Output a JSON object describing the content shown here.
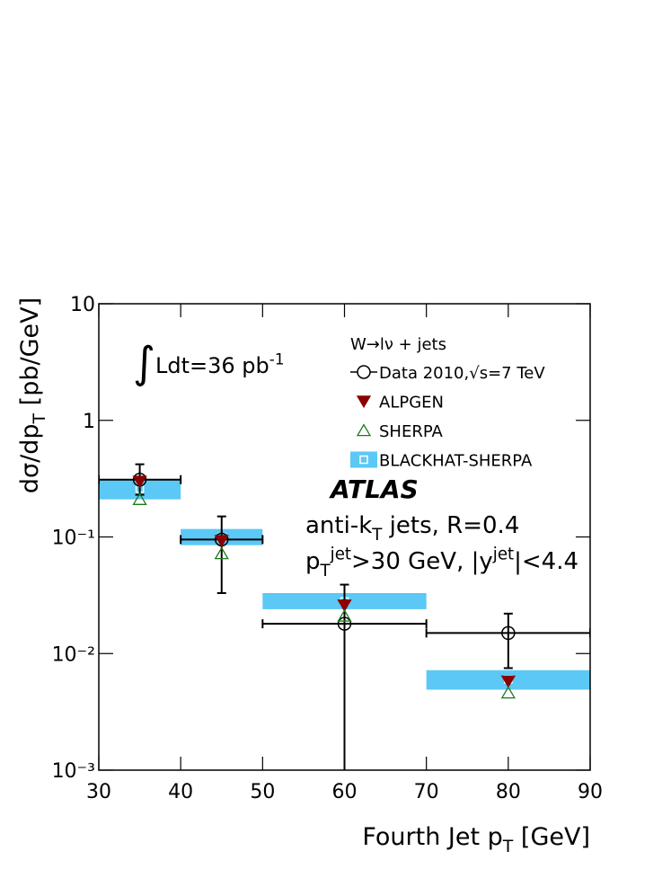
{
  "chart_data": {
    "type": "log-errorbar",
    "xlabel": [
      {
        "text": "Fourth Jet p"
      },
      {
        "text": "T",
        "pos": "sub"
      },
      {
        "text": " [GeV]"
      }
    ],
    "ylabel": [
      {
        "text": "dσ/dp"
      },
      {
        "text": "T",
        "pos": "sub"
      },
      {
        "text": " [pb/GeV]"
      }
    ],
    "log_y": true,
    "xlim": [
      30,
      90
    ],
    "ylim": [
      0.001,
      10
    ],
    "xticks": [
      30,
      40,
      50,
      60,
      70,
      80,
      90
    ],
    "yticks": [
      {
        "value": 0.001,
        "label": "10⁻³"
      },
      {
        "value": 0.01,
        "label": "10⁻²"
      },
      {
        "value": 0.1,
        "label": "10⁻¹"
      },
      1,
      10
    ],
    "x": [
      35,
      45,
      60,
      80
    ],
    "xerr": [
      5,
      5,
      10,
      10
    ],
    "legend_title": "W→lν + jets",
    "series": [
      {
        "name": "BLACKHAT-SHERPA",
        "style": "band",
        "color": "#5bc8f5",
        "values": [
          0.26,
          0.1,
          0.028,
          0.006
        ],
        "band_low": [
          0.21,
          0.085,
          0.024,
          0.0049
        ],
        "band_high": [
          0.31,
          0.117,
          0.033,
          0.0072
        ]
      },
      {
        "name": "Data 2010,√s=7 TeV",
        "style": "data",
        "color": "#000000",
        "values": [
          0.31,
          0.095,
          0.018,
          0.015
        ],
        "errors_minus": [
          0.08,
          0.062,
          0.018,
          0.0075
        ],
        "errors_plus": [
          0.11,
          0.055,
          0.021,
          0.007
        ]
      },
      {
        "name": "ALPGEN",
        "style": "triangle-down",
        "color": "#8b0000",
        "values": [
          0.3,
          0.093,
          0.026,
          0.0058
        ]
      },
      {
        "name": "SHERPA",
        "style": "triangle-up-open",
        "color": "#1a7a1a",
        "values": [
          0.21,
          0.072,
          0.021,
          0.0046
        ]
      }
    ],
    "legend_order": [
      1,
      2,
      3,
      0
    ],
    "annotations": [
      [
        {
          "text": "∫",
          "pos": "big"
        },
        {
          "text": "Ldt=36 pb"
        },
        {
          "text": "-1",
          "pos": "sup"
        }
      ],
      [
        {
          "text": "ATLAS"
        }
      ],
      [
        {
          "text": "anti-k"
        },
        {
          "text": "T",
          "pos": "sub"
        },
        {
          "text": " jets, R=0.4"
        }
      ],
      [
        {
          "text": "p"
        },
        {
          "text": "T",
          "pos": "sub"
        },
        {
          "text": "jet",
          "pos": "sup"
        },
        {
          "text": ">30 GeV, |y"
        },
        {
          "text": "jet",
          "pos": "sup"
        },
        {
          "text": "|<4.4"
        }
      ]
    ]
  }
}
